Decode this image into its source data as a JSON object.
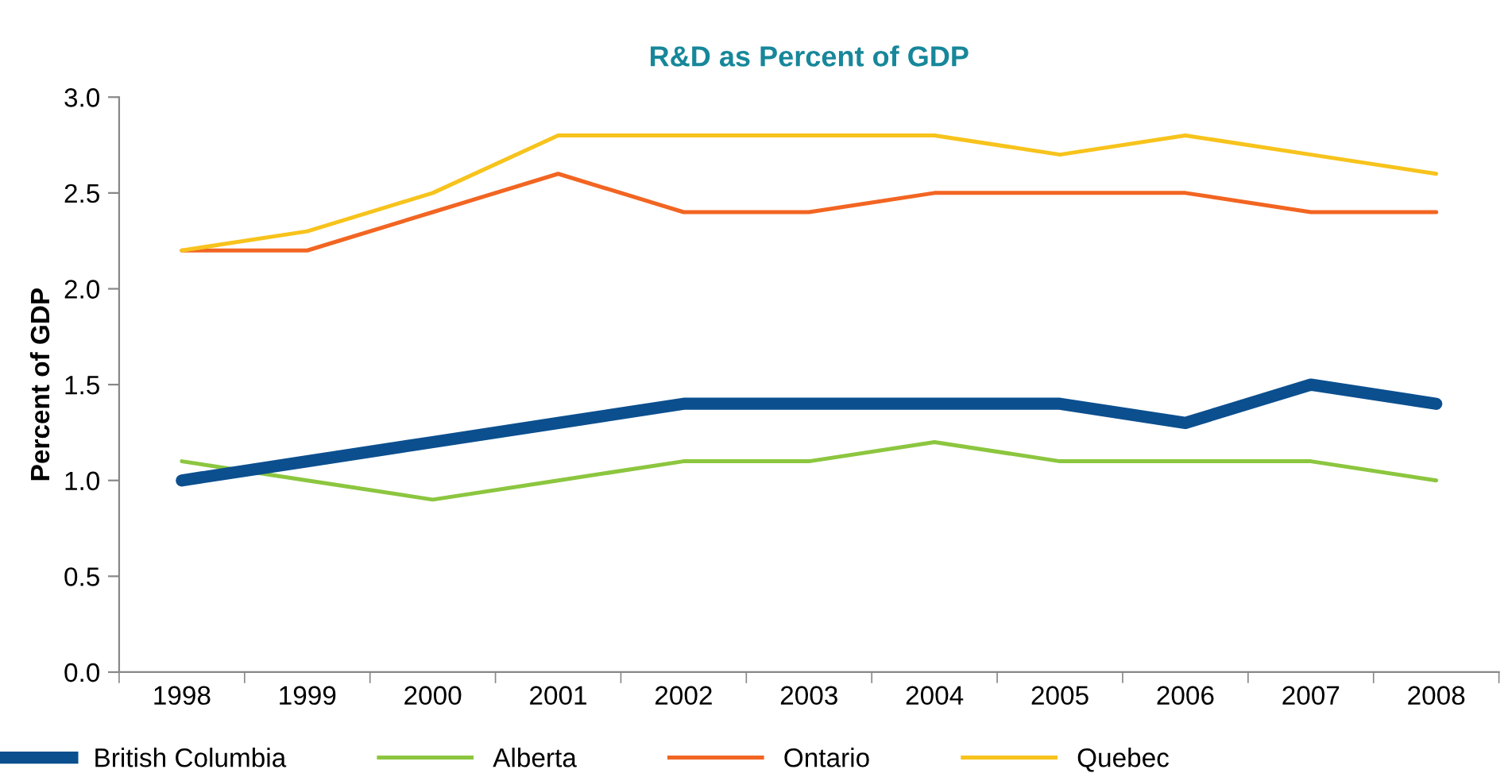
{
  "chart_data": {
    "type": "line",
    "title": "R&D as Percent of GDP",
    "ylabel": "Percent of GDP",
    "categories": [
      "1998",
      "1999",
      "2000",
      "2001",
      "2002",
      "2003",
      "2004",
      "2005",
      "2006",
      "2007",
      "2008"
    ],
    "series": [
      {
        "name": "British Columbia",
        "color": "#0b4f8f",
        "values": [
          1.0,
          1.1,
          1.2,
          1.3,
          1.4,
          1.4,
          1.4,
          1.4,
          1.3,
          1.5,
          1.4
        ]
      },
      {
        "name": "Alberta",
        "color": "#8cc63f",
        "values": [
          1.1,
          1.0,
          0.9,
          1.0,
          1.1,
          1.1,
          1.2,
          1.1,
          1.1,
          1.1,
          1.0
        ]
      },
      {
        "name": "Ontario",
        "color": "#f26522",
        "values": [
          2.2,
          2.2,
          2.4,
          2.6,
          2.4,
          2.4,
          2.5,
          2.5,
          2.5,
          2.4,
          2.4
        ]
      },
      {
        "name": "Quebec",
        "color": "#f7c31c",
        "values": [
          2.2,
          2.3,
          2.5,
          2.8,
          2.8,
          2.8,
          2.8,
          2.7,
          2.8,
          2.7,
          2.6
        ]
      }
    ],
    "ylim": [
      0,
      3
    ],
    "yticks": [
      {
        "value": 0,
        "label": "0.0"
      },
      {
        "value": 0.5,
        "label": "0.5"
      },
      {
        "value": 1,
        "label": "1.0"
      },
      {
        "value": 1.5,
        "label": "1.5"
      },
      {
        "value": 2,
        "label": "2.0"
      },
      {
        "value": 2.5,
        "label": "2.5"
      },
      {
        "value": 3,
        "label": "3.0"
      }
    ],
    "grid": false,
    "legend": "bottom",
    "marker": "none",
    "line_style": "solid"
  }
}
